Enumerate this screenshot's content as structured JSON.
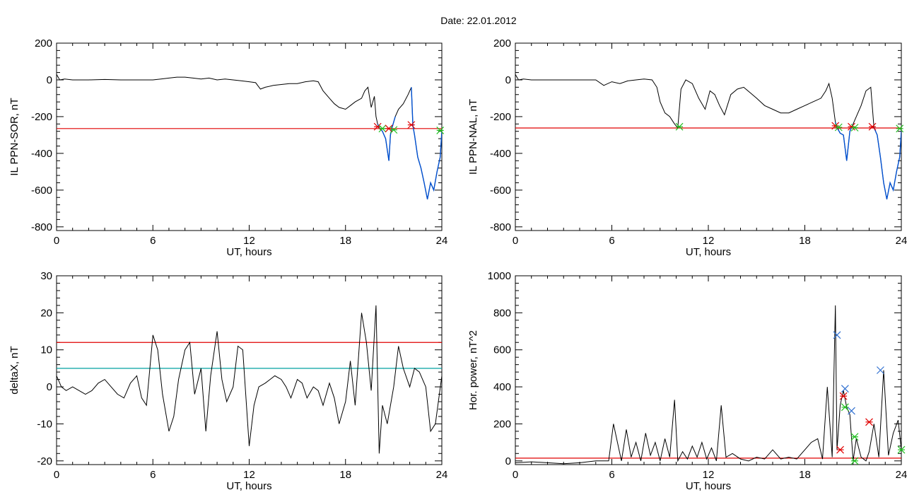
{
  "title": "Date:  22.01.2012",
  "colors": {
    "axis": "#000000",
    "series": "#000000",
    "threshold": "#e00000",
    "threshold2": "#00a0a0",
    "highlight": "#0050d0",
    "marker_red": "#e00000",
    "marker_green": "#20c020",
    "marker_blue": "#3070d0"
  },
  "chart_data": [
    {
      "type": "line",
      "xlabel": "UT, hours",
      "ylabel": "IL PPN-SOR, nT",
      "xlim": [
        0,
        24
      ],
      "ylim": [
        -820,
        200
      ],
      "xticks": [
        0,
        6,
        12,
        18,
        24
      ],
      "yticks": [
        200,
        0,
        -200,
        -400,
        -600,
        -800
      ],
      "series": [
        {
          "x": [
            0,
            0.2,
            0.5,
            1,
            2,
            3,
            4,
            5,
            6,
            6.5,
            7,
            7.5,
            8,
            8.5,
            9,
            9.5,
            10,
            10.5,
            11,
            11.5,
            12,
            12.4,
            12.7,
            13,
            13.5,
            14,
            14.5,
            15,
            15.5,
            16,
            16.3,
            16.6,
            17,
            17.3,
            17.6,
            18,
            18.3,
            18.6,
            19,
            19.2,
            19.4,
            19.6,
            19.8,
            19.9,
            20,
            20.1,
            20.3,
            20.5,
            20.7,
            20.8,
            20.9,
            21.1,
            21.3,
            21.6,
            21.9,
            22.1,
            22.2,
            22.3,
            22.5,
            22.7,
            22.9,
            23.1,
            23.3,
            23.5,
            23.7,
            23.9,
            24
          ],
          "y": [
            30,
            0,
            5,
            0,
            0,
            2,
            0,
            0,
            0,
            5,
            10,
            15,
            15,
            10,
            5,
            10,
            0,
            5,
            0,
            -5,
            -10,
            -15,
            -50,
            -40,
            -30,
            -25,
            -20,
            -20,
            -10,
            -5,
            -10,
            -60,
            -100,
            -130,
            -150,
            -160,
            -140,
            -120,
            -100,
            -60,
            -40,
            -150,
            -90,
            -200,
            -240,
            -260,
            -280,
            -320,
            -440,
            -300,
            -260,
            -200,
            -160,
            -130,
            -80,
            -40,
            -250,
            -300,
            -420,
            -480,
            -560,
            -650,
            -560,
            -600,
            -500,
            -420,
            -280
          ]
        }
      ],
      "thresholds": [
        {
          "value": -265,
          "color": "red"
        }
      ],
      "highlight_segments": [
        [
          20,
          21.2
        ],
        [
          22.1,
          24
        ]
      ],
      "markers": [
        {
          "x": 20.0,
          "y": -255,
          "color": "red"
        },
        {
          "x": 20.3,
          "y": -265,
          "color": "green"
        },
        {
          "x": 20.7,
          "y": -265,
          "color": "red"
        },
        {
          "x": 21.0,
          "y": -272,
          "color": "green"
        },
        {
          "x": 22.1,
          "y": -245,
          "color": "red"
        },
        {
          "x": 23.9,
          "y": -275,
          "color": "green"
        }
      ]
    },
    {
      "type": "line",
      "xlabel": "UT, hours",
      "ylabel": "IL PPN-NAL, nT",
      "xlim": [
        0,
        24
      ],
      "ylim": [
        -820,
        200
      ],
      "xticks": [
        0,
        6,
        12,
        18,
        24
      ],
      "yticks": [
        200,
        0,
        -200,
        -400,
        -600,
        -800
      ],
      "series": [
        {
          "x": [
            0,
            0.2,
            0.5,
            1,
            2,
            3,
            4,
            5,
            5.5,
            6,
            6.5,
            7,
            7.5,
            8,
            8.5,
            8.8,
            9,
            9.3,
            9.6,
            9.9,
            10.1,
            10.3,
            10.6,
            11,
            11.4,
            11.8,
            12.1,
            12.4,
            12.7,
            13,
            13.4,
            13.8,
            14.2,
            14.6,
            15,
            15.5,
            16,
            16.5,
            17,
            17.5,
            18,
            18.5,
            19,
            19.3,
            19.5,
            19.7,
            19.9,
            20,
            20.2,
            20.4,
            20.6,
            20.8,
            21,
            21.2,
            21.5,
            21.8,
            22.1,
            22.3,
            22.5,
            22.7,
            22.9,
            23.1,
            23.3,
            23.5,
            23.7,
            23.9,
            24
          ],
          "y": [
            30,
            0,
            5,
            0,
            0,
            0,
            0,
            0,
            -30,
            -10,
            -20,
            -5,
            0,
            5,
            0,
            -40,
            -120,
            -180,
            -200,
            -240,
            -260,
            -50,
            0,
            -20,
            -100,
            -160,
            -60,
            -80,
            -140,
            -190,
            -80,
            -50,
            -40,
            -70,
            -100,
            -140,
            -160,
            -180,
            -180,
            -160,
            -140,
            -120,
            -100,
            -60,
            -20,
            -100,
            -230,
            -260,
            -290,
            -300,
            -440,
            -280,
            -240,
            -200,
            -140,
            -60,
            -40,
            -260,
            -300,
            -420,
            -560,
            -650,
            -560,
            -600,
            -500,
            -420,
            -280
          ]
        }
      ],
      "thresholds": [
        {
          "value": -262,
          "color": "red"
        }
      ],
      "highlight_segments": [
        [
          19.9,
          21.1
        ],
        [
          22.2,
          24
        ]
      ],
      "markers": [
        {
          "x": 10.2,
          "y": -255,
          "color": "green"
        },
        {
          "x": 19.9,
          "y": -250,
          "color": "red"
        },
        {
          "x": 20.1,
          "y": -258,
          "color": "green"
        },
        {
          "x": 20.9,
          "y": -255,
          "color": "red"
        },
        {
          "x": 21.1,
          "y": -260,
          "color": "green"
        },
        {
          "x": 22.2,
          "y": -255,
          "color": "red"
        },
        {
          "x": 23.9,
          "y": -265,
          "color": "green"
        }
      ]
    },
    {
      "type": "line",
      "xlabel": "UT, hours",
      "ylabel": "deltaX, nT",
      "xlim": [
        0,
        24
      ],
      "ylim": [
        -21,
        30
      ],
      "xticks": [
        0,
        6,
        12,
        18,
        24
      ],
      "yticks": [
        30,
        20,
        10,
        0,
        -10,
        -20
      ],
      "series": [
        {
          "x": [
            0,
            0.3,
            0.6,
            1,
            1.4,
            1.8,
            2.2,
            2.6,
            3,
            3.4,
            3.8,
            4.2,
            4.6,
            5,
            5.3,
            5.6,
            6,
            6.3,
            6.6,
            7,
            7.3,
            7.6,
            8,
            8.3,
            8.6,
            9,
            9.3,
            9.6,
            10,
            10.3,
            10.6,
            11,
            11.3,
            11.6,
            12,
            12.3,
            12.6,
            13,
            13.3,
            13.6,
            14,
            14.3,
            14.6,
            15,
            15.3,
            15.6,
            16,
            16.3,
            16.6,
            17,
            17.3,
            17.6,
            18,
            18.3,
            18.6,
            19,
            19.3,
            19.6,
            19.9,
            20.1,
            20.3,
            20.6,
            21,
            21.3,
            21.6,
            22,
            22.3,
            22.6,
            23,
            23.3,
            23.6,
            24
          ],
          "y": [
            3,
            0,
            -1,
            0,
            -1,
            -2,
            -1,
            1,
            2,
            0,
            -2,
            -3,
            1,
            3,
            -3,
            -5,
            14,
            10,
            -2,
            -12,
            -8,
            2,
            10,
            12,
            -2,
            5,
            -12,
            3,
            15,
            2,
            -4,
            0,
            11,
            10,
            -16,
            -5,
            0,
            1,
            2,
            3,
            2,
            0,
            -3,
            2,
            1,
            -3,
            0,
            -1,
            -5,
            1,
            -3,
            -10,
            -4,
            7,
            -5,
            20,
            12,
            -1,
            22,
            -18,
            -5,
            -10,
            0,
            11,
            5,
            0,
            5,
            4,
            0,
            -12,
            -10,
            3
          ]
        }
      ],
      "thresholds": [
        {
          "value": 12,
          "color": "red"
        },
        {
          "value": 5,
          "color": "teal"
        }
      ],
      "highlight_segments": [],
      "markers": []
    },
    {
      "type": "line",
      "xlabel": "UT, hours",
      "ylabel": "Hor. power, nT^2",
      "xlim": [
        0,
        24
      ],
      "ylim": [
        -20,
        1000
      ],
      "xticks": [
        0,
        6,
        12,
        18,
        24
      ],
      "yticks": [
        1000,
        800,
        600,
        400,
        200,
        0
      ],
      "series": [
        {
          "x": [
            0,
            1,
            2,
            3,
            4,
            5,
            5.8,
            6.1,
            6.3,
            6.6,
            6.9,
            7.2,
            7.5,
            7.8,
            8.1,
            8.4,
            8.7,
            9,
            9.3,
            9.6,
            9.9,
            10.1,
            10.4,
            10.7,
            11,
            11.3,
            11.6,
            11.9,
            12.2,
            12.5,
            12.8,
            13.1,
            13.5,
            14,
            14.5,
            15,
            15.5,
            16,
            16.5,
            17,
            17.5,
            18,
            18.4,
            18.8,
            19.1,
            19.4,
            19.7,
            19.9,
            20.0,
            20.2,
            20.4,
            20.6,
            20.8,
            21.0,
            21.2,
            21.5,
            21.8,
            22.0,
            22.3,
            22.6,
            22.9,
            23.2,
            23.5,
            23.8,
            24
          ],
          "y": [
            -10,
            -5,
            -10,
            -15,
            -10,
            0,
            0,
            200,
            120,
            0,
            170,
            20,
            100,
            0,
            150,
            30,
            100,
            0,
            120,
            20,
            330,
            0,
            50,
            10,
            80,
            20,
            100,
            10,
            70,
            0,
            300,
            20,
            40,
            10,
            0,
            20,
            10,
            60,
            10,
            20,
            10,
            60,
            100,
            120,
            10,
            400,
            20,
            840,
            60,
            300,
            380,
            290,
            250,
            0,
            120,
            20,
            0,
            50,
            200,
            20,
            490,
            30,
            150,
            220,
            60
          ]
        }
      ],
      "thresholds": [
        {
          "value": 15,
          "color": "red"
        }
      ],
      "highlight_segments": [],
      "markers": [
        {
          "x": 20.0,
          "y": 680,
          "color": "blue"
        },
        {
          "x": 20.2,
          "y": 60,
          "color": "red"
        },
        {
          "x": 20.5,
          "y": 390,
          "color": "blue"
        },
        {
          "x": 20.4,
          "y": 350,
          "color": "red"
        },
        {
          "x": 20.5,
          "y": 290,
          "color": "green"
        },
        {
          "x": 20.9,
          "y": 270,
          "color": "blue"
        },
        {
          "x": 21.1,
          "y": 130,
          "color": "green"
        },
        {
          "x": 21.1,
          "y": 0,
          "color": "green"
        },
        {
          "x": 22.0,
          "y": 210,
          "color": "red"
        },
        {
          "x": 22.7,
          "y": 490,
          "color": "blue"
        },
        {
          "x": 24.0,
          "y": 60,
          "color": "green"
        }
      ]
    }
  ]
}
